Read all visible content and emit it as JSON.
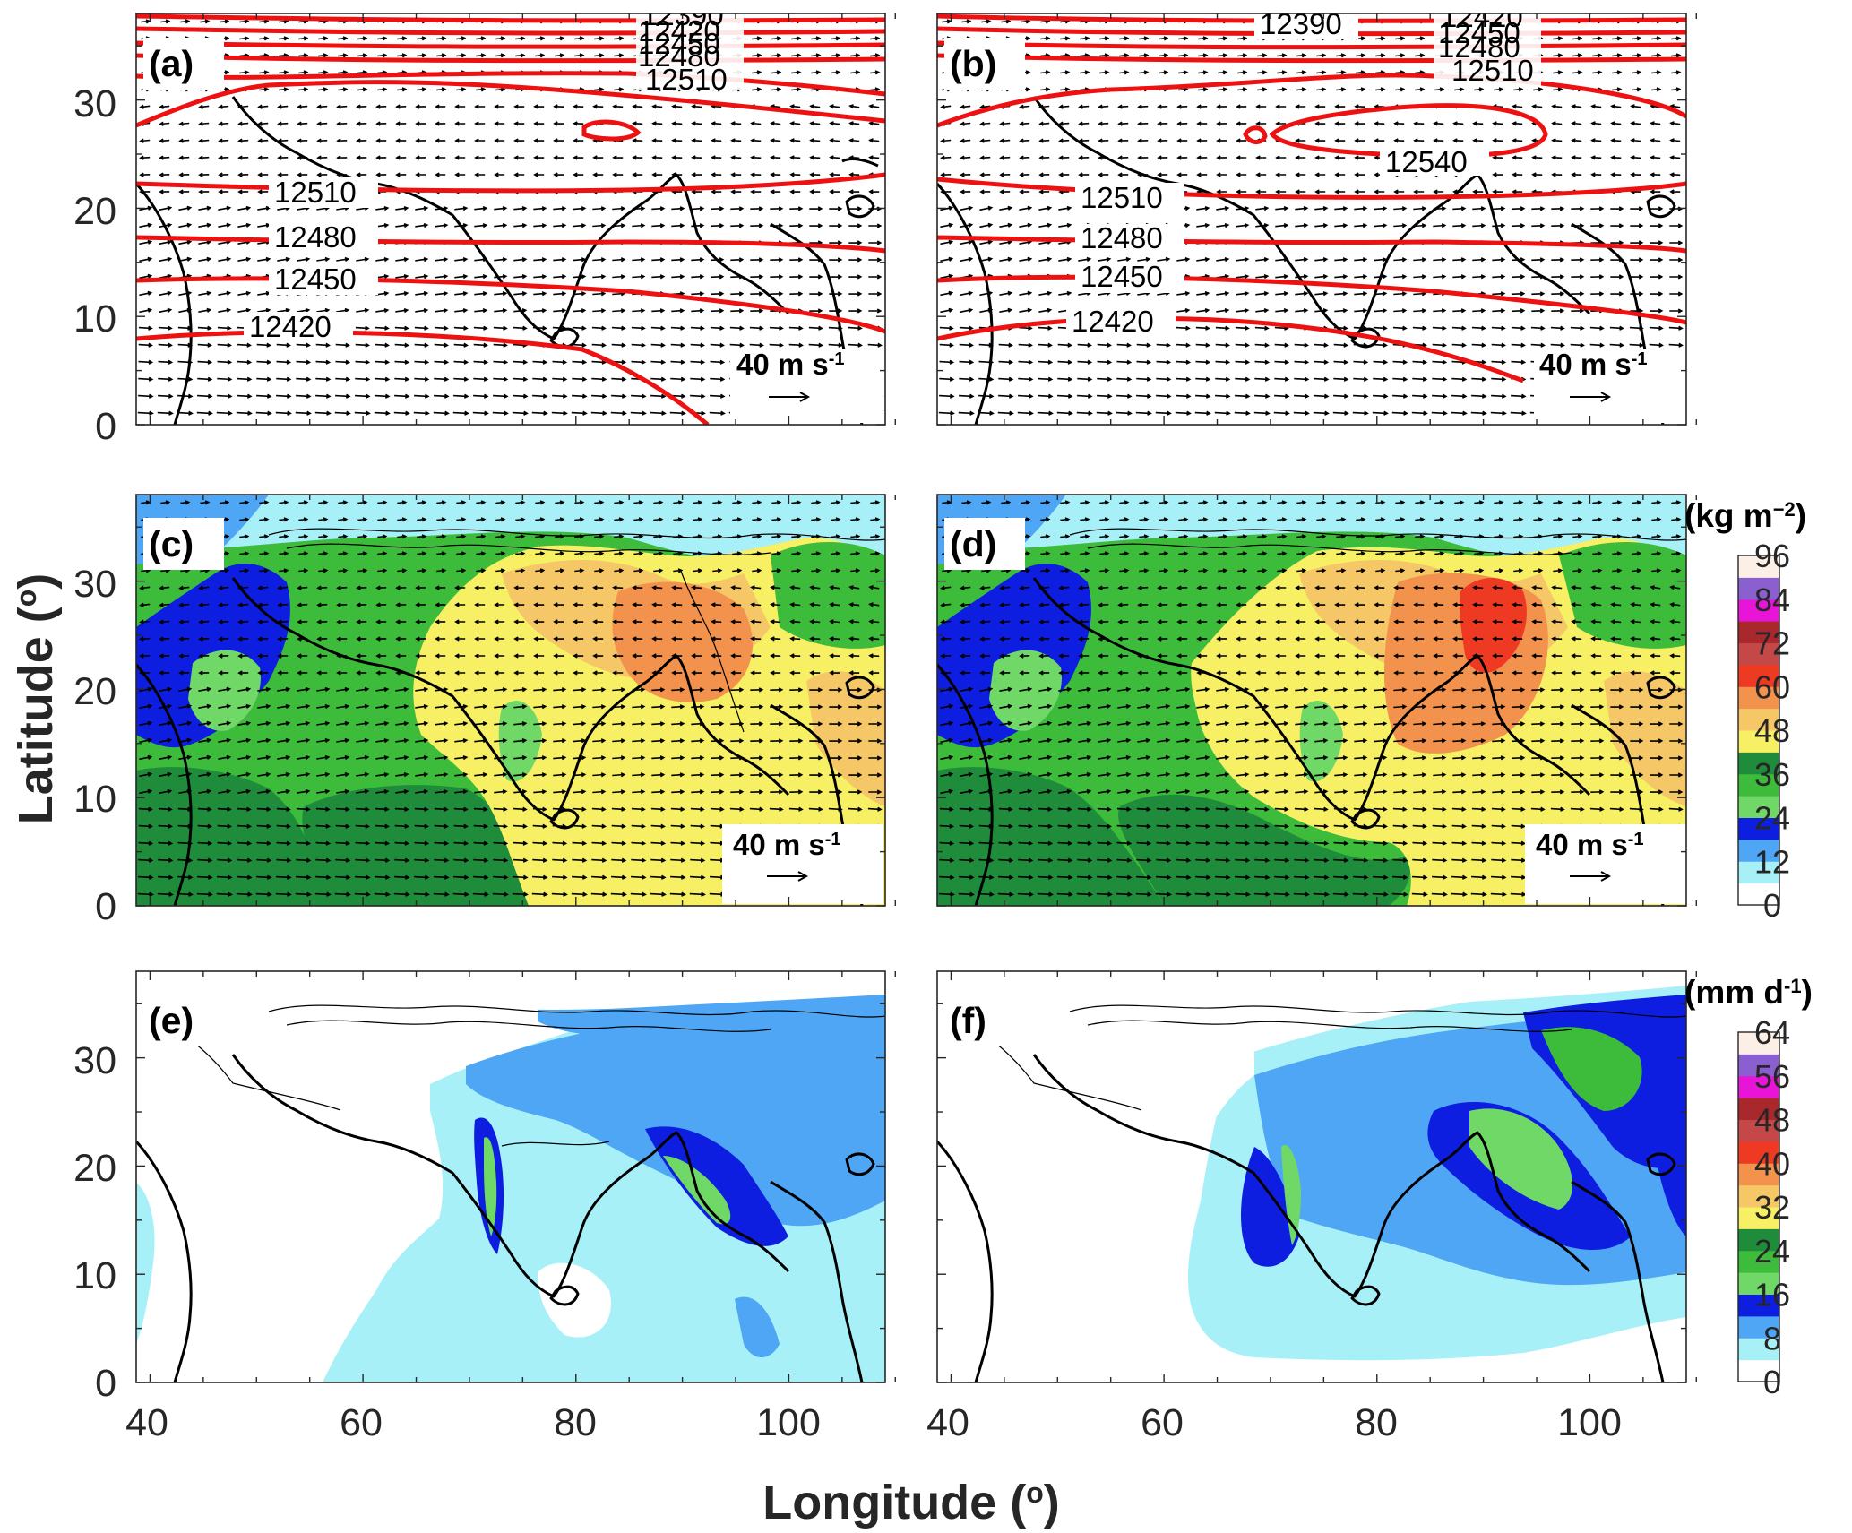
{
  "figure": {
    "xlabel": "Longitude (",
    "xlabel_sup": "o",
    "xlabel_close": ")",
    "ylabel": "Latitude (",
    "ylabel_sup": "o",
    "ylabel_close": ")"
  },
  "axes": {
    "lon_ticks": [
      "40",
      "60",
      "80",
      "100"
    ],
    "lat_ticks": [
      "0",
      "10",
      "20",
      "30"
    ],
    "lon_range": [
      40,
      110
    ],
    "lat_range": [
      0,
      38
    ]
  },
  "panels": [
    {
      "tag": "(a)",
      "kind": "height-wind"
    },
    {
      "tag": "(b)",
      "kind": "height-wind"
    },
    {
      "tag": "(c)",
      "kind": "water-vapor-wind"
    },
    {
      "tag": "(d)",
      "kind": "water-vapor-wind"
    },
    {
      "tag": "(e)",
      "kind": "precipitation"
    },
    {
      "tag": "(f)",
      "kind": "precipitation"
    }
  ],
  "wind_scale": {
    "label": "40 m s",
    "sup": "-1"
  },
  "contours": {
    "a": [
      "12390",
      "12420",
      "12450",
      "12480",
      "12510",
      "12510",
      "12480",
      "12450",
      "12420"
    ],
    "b": [
      "12390",
      "12420",
      "12450",
      "12480",
      "12510",
      "12540",
      "12510",
      "12480",
      "12450",
      "12420"
    ]
  },
  "colorbar_vapor": {
    "unit": "(kg m",
    "unit_sup": "−2",
    "unit_close": ")",
    "labels": [
      "0",
      "12",
      "24",
      "36",
      "48",
      "60",
      "72",
      "84",
      "96"
    ],
    "colors": [
      "#ffffff",
      "#a8f0f8",
      "#4ea6f5",
      "#0d1ee0",
      "#6fd866",
      "#3dbb3a",
      "#1e8c3a",
      "#f7f065",
      "#f5c766",
      "#f2924d",
      "#ee3a22",
      "#c44848",
      "#a8282c",
      "#e814d8",
      "#8a5fcf",
      "#fcefe6"
    ]
  },
  "colorbar_precip": {
    "unit": "(mm d",
    "unit_sup": "-1",
    "unit_close": ")",
    "labels": [
      "0",
      "8",
      "16",
      "24",
      "32",
      "40",
      "48",
      "56",
      "64"
    ],
    "colors": [
      "#ffffff",
      "#a8f0f8",
      "#4ea6f5",
      "#0d1ee0",
      "#6fd866",
      "#3dbb3a",
      "#1e8c3a",
      "#f7f065",
      "#f5c766",
      "#f2924d",
      "#ee3a22",
      "#c44848",
      "#a8282c",
      "#e814d8",
      "#8a5fcf",
      "#fcefe6"
    ]
  },
  "colors": {
    "contour": "#ee1111",
    "coast": "#000000"
  }
}
